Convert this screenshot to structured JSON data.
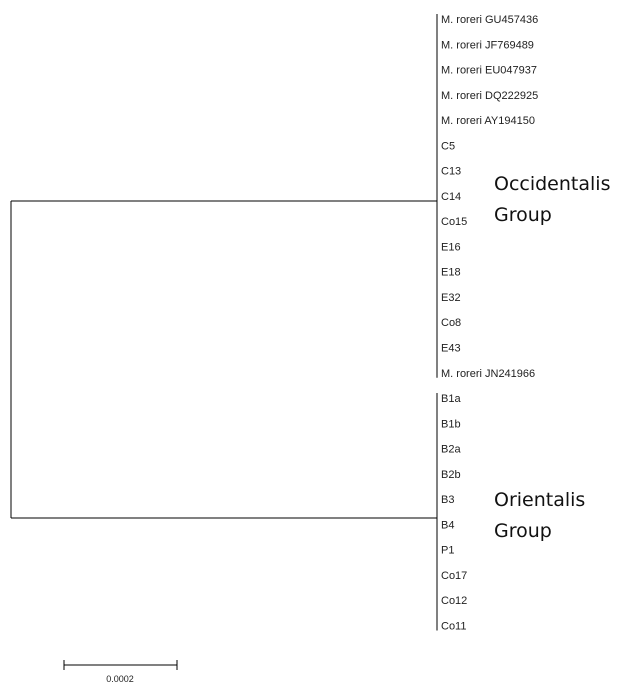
{
  "tree": {
    "clades": [
      {
        "id": "occidentalis",
        "group_label_lines": [
          "Occidentalis",
          "Group"
        ],
        "leaves": [
          "M. roreri GU457436",
          "M. roreri JF769489",
          "M. roreri EU047937",
          "M. roreri DQ222925",
          "M. roreri AY194150",
          "C5",
          "C13",
          "C14",
          "Co15",
          "E16",
          "E18",
          "E32",
          "Co8",
          "E43",
          "M. roreri JN241966"
        ]
      },
      {
        "id": "orientalis",
        "group_label_lines": [
          "Orientalis",
          "Group"
        ],
        "leaves": [
          "B1a",
          "B1b",
          "B2a",
          "B2b",
          "B3",
          "B4",
          "P1",
          "Co17",
          "Co12",
          "Co11"
        ]
      }
    ],
    "scale_bar": {
      "label": "0.0002"
    }
  },
  "colors": {
    "branch": "#000000",
    "text": "#222222"
  }
}
